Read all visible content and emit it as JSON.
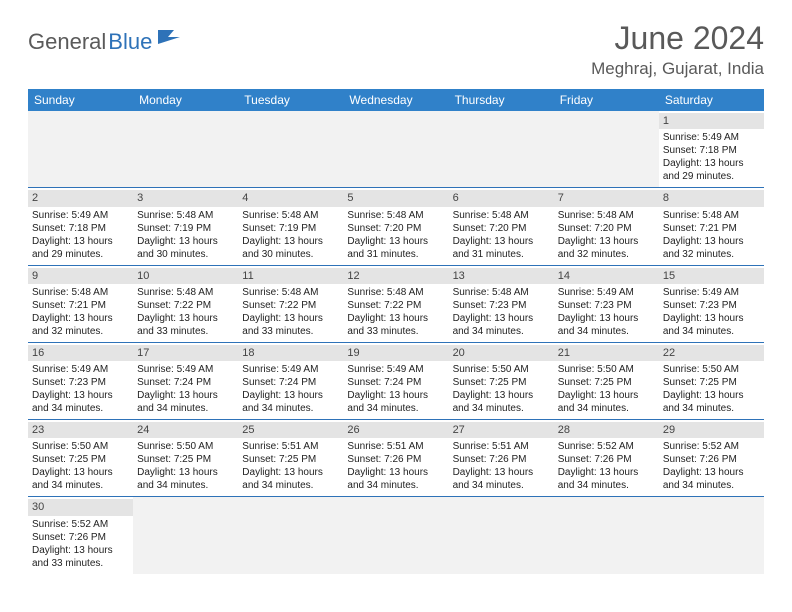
{
  "logo": {
    "part1": "General",
    "part2": "Blue"
  },
  "title": "June 2024",
  "location": "Meghraj, Gujarat, India",
  "colors": {
    "header_bg": "#3081c9",
    "header_text": "#ffffff",
    "daynum_bg": "#e4e4e4",
    "blank_bg": "#f2f2f2",
    "row_border": "#2e72b8",
    "title_color": "#595959",
    "logo_gray": "#5a5a5a",
    "logo_blue": "#2e72b8"
  },
  "weekdays": [
    "Sunday",
    "Monday",
    "Tuesday",
    "Wednesday",
    "Thursday",
    "Friday",
    "Saturday"
  ],
  "weeks": [
    [
      {
        "blank": true
      },
      {
        "blank": true
      },
      {
        "blank": true
      },
      {
        "blank": true
      },
      {
        "blank": true
      },
      {
        "blank": true
      },
      {
        "day": "1",
        "sunrise": "Sunrise: 5:49 AM",
        "sunset": "Sunset: 7:18 PM",
        "daylight1": "Daylight: 13 hours",
        "daylight2": "and 29 minutes."
      }
    ],
    [
      {
        "day": "2",
        "sunrise": "Sunrise: 5:49 AM",
        "sunset": "Sunset: 7:18 PM",
        "daylight1": "Daylight: 13 hours",
        "daylight2": "and 29 minutes."
      },
      {
        "day": "3",
        "sunrise": "Sunrise: 5:48 AM",
        "sunset": "Sunset: 7:19 PM",
        "daylight1": "Daylight: 13 hours",
        "daylight2": "and 30 minutes."
      },
      {
        "day": "4",
        "sunrise": "Sunrise: 5:48 AM",
        "sunset": "Sunset: 7:19 PM",
        "daylight1": "Daylight: 13 hours",
        "daylight2": "and 30 minutes."
      },
      {
        "day": "5",
        "sunrise": "Sunrise: 5:48 AM",
        "sunset": "Sunset: 7:20 PM",
        "daylight1": "Daylight: 13 hours",
        "daylight2": "and 31 minutes."
      },
      {
        "day": "6",
        "sunrise": "Sunrise: 5:48 AM",
        "sunset": "Sunset: 7:20 PM",
        "daylight1": "Daylight: 13 hours",
        "daylight2": "and 31 minutes."
      },
      {
        "day": "7",
        "sunrise": "Sunrise: 5:48 AM",
        "sunset": "Sunset: 7:20 PM",
        "daylight1": "Daylight: 13 hours",
        "daylight2": "and 32 minutes."
      },
      {
        "day": "8",
        "sunrise": "Sunrise: 5:48 AM",
        "sunset": "Sunset: 7:21 PM",
        "daylight1": "Daylight: 13 hours",
        "daylight2": "and 32 minutes."
      }
    ],
    [
      {
        "day": "9",
        "sunrise": "Sunrise: 5:48 AM",
        "sunset": "Sunset: 7:21 PM",
        "daylight1": "Daylight: 13 hours",
        "daylight2": "and 32 minutes."
      },
      {
        "day": "10",
        "sunrise": "Sunrise: 5:48 AM",
        "sunset": "Sunset: 7:22 PM",
        "daylight1": "Daylight: 13 hours",
        "daylight2": "and 33 minutes."
      },
      {
        "day": "11",
        "sunrise": "Sunrise: 5:48 AM",
        "sunset": "Sunset: 7:22 PM",
        "daylight1": "Daylight: 13 hours",
        "daylight2": "and 33 minutes."
      },
      {
        "day": "12",
        "sunrise": "Sunrise: 5:48 AM",
        "sunset": "Sunset: 7:22 PM",
        "daylight1": "Daylight: 13 hours",
        "daylight2": "and 33 minutes."
      },
      {
        "day": "13",
        "sunrise": "Sunrise: 5:48 AM",
        "sunset": "Sunset: 7:23 PM",
        "daylight1": "Daylight: 13 hours",
        "daylight2": "and 34 minutes."
      },
      {
        "day": "14",
        "sunrise": "Sunrise: 5:49 AM",
        "sunset": "Sunset: 7:23 PM",
        "daylight1": "Daylight: 13 hours",
        "daylight2": "and 34 minutes."
      },
      {
        "day": "15",
        "sunrise": "Sunrise: 5:49 AM",
        "sunset": "Sunset: 7:23 PM",
        "daylight1": "Daylight: 13 hours",
        "daylight2": "and 34 minutes."
      }
    ],
    [
      {
        "day": "16",
        "sunrise": "Sunrise: 5:49 AM",
        "sunset": "Sunset: 7:23 PM",
        "daylight1": "Daylight: 13 hours",
        "daylight2": "and 34 minutes."
      },
      {
        "day": "17",
        "sunrise": "Sunrise: 5:49 AM",
        "sunset": "Sunset: 7:24 PM",
        "daylight1": "Daylight: 13 hours",
        "daylight2": "and 34 minutes."
      },
      {
        "day": "18",
        "sunrise": "Sunrise: 5:49 AM",
        "sunset": "Sunset: 7:24 PM",
        "daylight1": "Daylight: 13 hours",
        "daylight2": "and 34 minutes."
      },
      {
        "day": "19",
        "sunrise": "Sunrise: 5:49 AM",
        "sunset": "Sunset: 7:24 PM",
        "daylight1": "Daylight: 13 hours",
        "daylight2": "and 34 minutes."
      },
      {
        "day": "20",
        "sunrise": "Sunrise: 5:50 AM",
        "sunset": "Sunset: 7:25 PM",
        "daylight1": "Daylight: 13 hours",
        "daylight2": "and 34 minutes."
      },
      {
        "day": "21",
        "sunrise": "Sunrise: 5:50 AM",
        "sunset": "Sunset: 7:25 PM",
        "daylight1": "Daylight: 13 hours",
        "daylight2": "and 34 minutes."
      },
      {
        "day": "22",
        "sunrise": "Sunrise: 5:50 AM",
        "sunset": "Sunset: 7:25 PM",
        "daylight1": "Daylight: 13 hours",
        "daylight2": "and 34 minutes."
      }
    ],
    [
      {
        "day": "23",
        "sunrise": "Sunrise: 5:50 AM",
        "sunset": "Sunset: 7:25 PM",
        "daylight1": "Daylight: 13 hours",
        "daylight2": "and 34 minutes."
      },
      {
        "day": "24",
        "sunrise": "Sunrise: 5:50 AM",
        "sunset": "Sunset: 7:25 PM",
        "daylight1": "Daylight: 13 hours",
        "daylight2": "and 34 minutes."
      },
      {
        "day": "25",
        "sunrise": "Sunrise: 5:51 AM",
        "sunset": "Sunset: 7:25 PM",
        "daylight1": "Daylight: 13 hours",
        "daylight2": "and 34 minutes."
      },
      {
        "day": "26",
        "sunrise": "Sunrise: 5:51 AM",
        "sunset": "Sunset: 7:26 PM",
        "daylight1": "Daylight: 13 hours",
        "daylight2": "and 34 minutes."
      },
      {
        "day": "27",
        "sunrise": "Sunrise: 5:51 AM",
        "sunset": "Sunset: 7:26 PM",
        "daylight1": "Daylight: 13 hours",
        "daylight2": "and 34 minutes."
      },
      {
        "day": "28",
        "sunrise": "Sunrise: 5:52 AM",
        "sunset": "Sunset: 7:26 PM",
        "daylight1": "Daylight: 13 hours",
        "daylight2": "and 34 minutes."
      },
      {
        "day": "29",
        "sunrise": "Sunrise: 5:52 AM",
        "sunset": "Sunset: 7:26 PM",
        "daylight1": "Daylight: 13 hours",
        "daylight2": "and 34 minutes."
      }
    ],
    [
      {
        "day": "30",
        "sunrise": "Sunrise: 5:52 AM",
        "sunset": "Sunset: 7:26 PM",
        "daylight1": "Daylight: 13 hours",
        "daylight2": "and 33 minutes."
      },
      {
        "blank": true
      },
      {
        "blank": true
      },
      {
        "blank": true
      },
      {
        "blank": true
      },
      {
        "blank": true
      },
      {
        "blank": true
      }
    ]
  ]
}
